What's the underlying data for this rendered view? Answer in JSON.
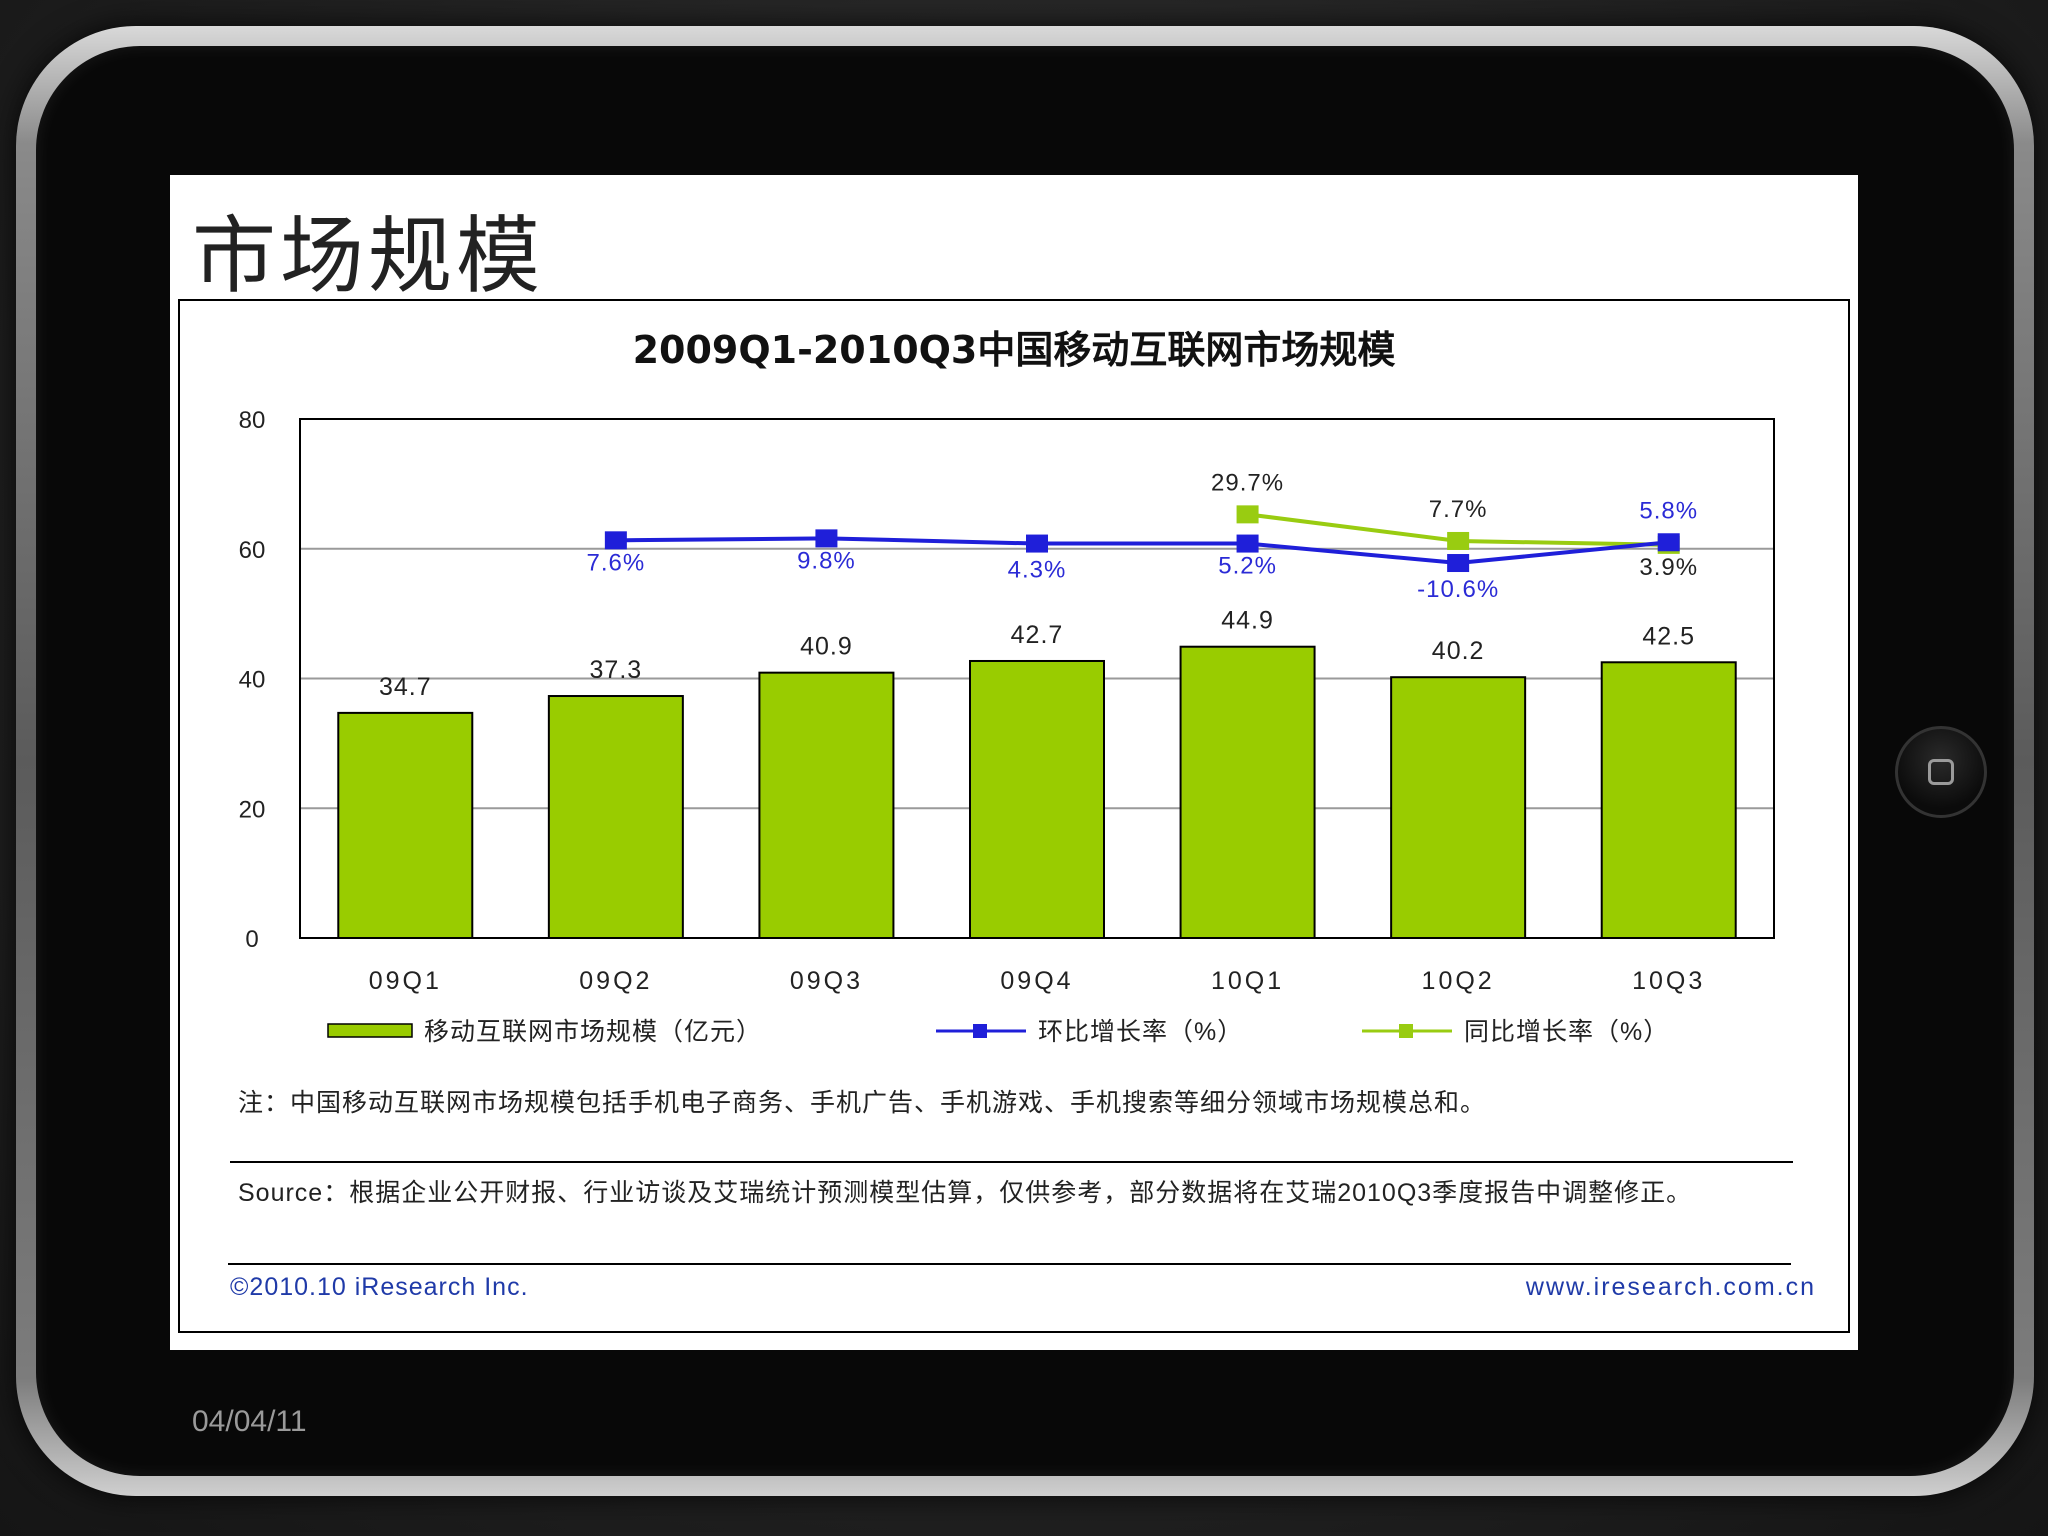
{
  "slide": {
    "title": "市场规模",
    "date": "04/04/11"
  },
  "colors": {
    "bar": "#99cc00",
    "line_qoq": "#1f1fd9",
    "line_yoy": "#99cc11",
    "label_qoq": "#2b2bd6",
    "text": "#222222"
  },
  "chart_data": {
    "type": "bar",
    "title": "2009Q1-2010Q3中国移动互联网市场规模",
    "categories": [
      "09Q1",
      "09Q2",
      "09Q3",
      "09Q4",
      "10Q1",
      "10Q2",
      "10Q3"
    ],
    "ylim": [
      0,
      80
    ],
    "yticks": [
      "0",
      "20",
      "40",
      "60",
      "80"
    ],
    "grid": true,
    "series": [
      {
        "name": "移动互联网市场规模（亿元）",
        "kind": "bar",
        "values": [
          34.7,
          37.3,
          40.9,
          42.7,
          44.9,
          40.2,
          42.5
        ],
        "labels": [
          "34.7",
          "37.3",
          "40.9",
          "42.7",
          "44.9",
          "40.2",
          "42.5"
        ]
      },
      {
        "name": "环比增长率（%）",
        "kind": "line",
        "values": [
          null,
          7.6,
          9.8,
          4.3,
          5.2,
          -10.6,
          5.8
        ],
        "labels": [
          "",
          "7.6%",
          "9.8%",
          "4.3%",
          "5.2%",
          "-10.6%",
          "5.8%"
        ],
        "plot_y": [
          null,
          61.3,
          61.6,
          60.8,
          60.8,
          57.8,
          61.0
        ]
      },
      {
        "name": "同比增长率（%）",
        "kind": "line",
        "values": [
          null,
          null,
          null,
          null,
          29.7,
          7.7,
          3.9
        ],
        "labels": [
          "",
          "",
          "",
          "",
          "29.7%",
          "7.7%",
          "3.9%"
        ],
        "plot_y": [
          null,
          null,
          null,
          null,
          65.3,
          61.2,
          60.6
        ]
      }
    ],
    "legend_position": "bottom"
  },
  "notes": {
    "note": "注：中国移动互联网市场规模包括手机电子商务、手机广告、手机游戏、手机搜索等细分领域市场规模总和。",
    "source": "Source：根据企业公开财报、行业访谈及艾瑞统计预测模型估算，仅供参考，部分数据将在艾瑞2010Q3季度报告中调整修正。",
    "copyright": "©2010.10 iResearch Inc.",
    "website": "www.iresearch.com.cn"
  }
}
